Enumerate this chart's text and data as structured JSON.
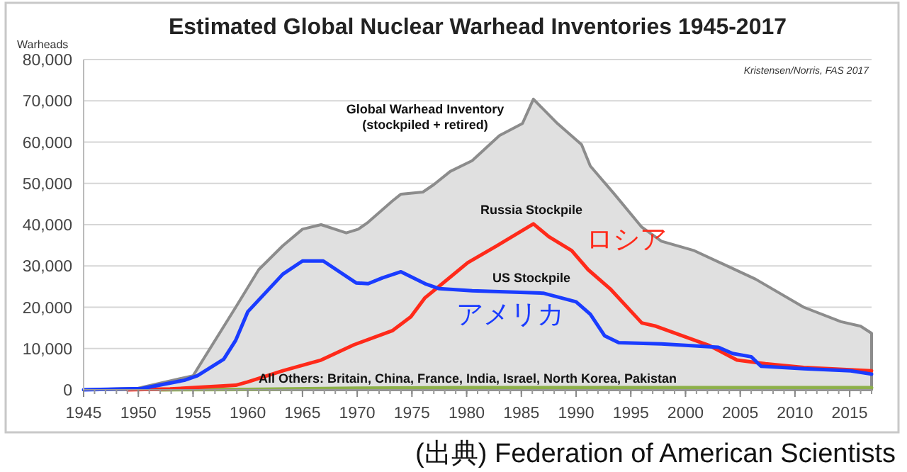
{
  "chart_data": {
    "type": "line",
    "title": "Estimated Global Nuclear Warhead Inventories 1945-2017",
    "ylabel": "Warheads",
    "xlim": [
      1945,
      2017
    ],
    "xticks": [
      1945,
      1950,
      1955,
      1960,
      1965,
      1970,
      1975,
      1980,
      1985,
      1990,
      1995,
      2000,
      2005,
      2010,
      2015
    ],
    "ylim": [
      0,
      80000
    ],
    "yticks": [
      0,
      {
        "value": 10000,
        "label": "10,000"
      },
      {
        "value": 20000,
        "label": "20,000"
      },
      {
        "value": 30000,
        "label": "30,000"
      },
      {
        "value": 40000,
        "label": "40,000"
      },
      {
        "value": 50000,
        "label": "50,000"
      },
      {
        "value": 60000,
        "label": "60,000"
      },
      {
        "value": 70000,
        "label": "70,000"
      },
      {
        "value": 80000,
        "label": "80,000"
      }
    ],
    "grid": "y",
    "series": [
      {
        "name": "Global Warhead Inventory (stockpiled + retired)",
        "type": "area",
        "color": "#8c8c8c",
        "x": [
          1945,
          1950,
          1955,
          1958.9,
          1961,
          1963.2,
          1965,
          1966.7,
          1969,
          1970.1,
          1971,
          1973.2,
          1974,
          1976,
          1977,
          1978.5,
          1980.5,
          1983,
          1985.1,
          1986.1,
          1988.3,
          1990.5,
          1991.3,
          1993.5,
          1996,
          1997.8,
          2000.8,
          2006.4,
          2010.8,
          2014.2,
          2016,
          2017
        ],
        "values": [
          0,
          400,
          3400,
          20000,
          29100,
          34900,
          38900,
          40000,
          38000,
          38900,
          40600,
          45700,
          47400,
          47900,
          49700,
          52900,
          55500,
          61600,
          64500,
          70400,
          64500,
          59400,
          54200,
          47400,
          39400,
          36000,
          33700,
          26800,
          20000,
          16500,
          15400,
          13700
        ]
      },
      {
        "name": "All Others: Britain, China, France, India, Israel, North Korea, Pakistan",
        "color": "#8db04a",
        "x": [
          1952,
          1960,
          1964,
          1967,
          1970,
          1980,
          1990,
          2000,
          2010,
          2017
        ],
        "values": [
          0,
          100,
          200,
          300,
          400,
          500,
          500,
          500,
          500,
          500
        ]
      },
      {
        "name": "Russia Stockpile",
        "color": "#ff2a1a",
        "x": [
          1949,
          1952.9,
          1958.9,
          1960,
          1963.2,
          1966.7,
          1969.7,
          1973.2,
          1974.9,
          1976.2,
          1977.5,
          1980.1,
          1982.7,
          1986.1,
          1987.5,
          1989.6,
          1991.1,
          1993.1,
          1996,
          1997.3,
          2002.1,
          2004.7,
          2007.3,
          2010.8,
          2017
        ],
        "values": [
          0,
          200,
          1100,
          1900,
          4600,
          7200,
          10900,
          14300,
          17700,
          22300,
          25100,
          30800,
          34800,
          40200,
          37100,
          33700,
          29100,
          24500,
          16200,
          15400,
          10800,
          7200,
          6300,
          5400,
          4600
        ]
      },
      {
        "name": "US Stockpile",
        "color": "#1a3cff",
        "x": [
          1945,
          1950.3,
          1954.2,
          1955.4,
          1957.8,
          1958.9,
          1960,
          1963.2,
          1965,
          1966.9,
          1969.9,
          1971,
          1972.3,
          1974,
          1976.2,
          1977.5,
          1980.5,
          1984.9,
          1987,
          1990,
          1991.3,
          1992.6,
          1993.9,
          1997.8,
          2003,
          2004.3,
          2006,
          2006.9,
          2010.8,
          2015.1,
          2017
        ],
        "values": [
          0,
          300,
          2300,
          3400,
          7400,
          12000,
          18900,
          28000,
          31200,
          31200,
          25900,
          25700,
          27100,
          28600,
          25700,
          24500,
          24000,
          23600,
          23400,
          21300,
          18300,
          13100,
          11400,
          11100,
          10300,
          8800,
          8000,
          5700,
          5100,
          4600,
          3800
        ]
      }
    ],
    "annotations": [
      "Kristensen/Norris, FAS 2017",
      "(出典) Federation of American Scientists",
      "ロシア",
      "アメリカ"
    ]
  }
}
